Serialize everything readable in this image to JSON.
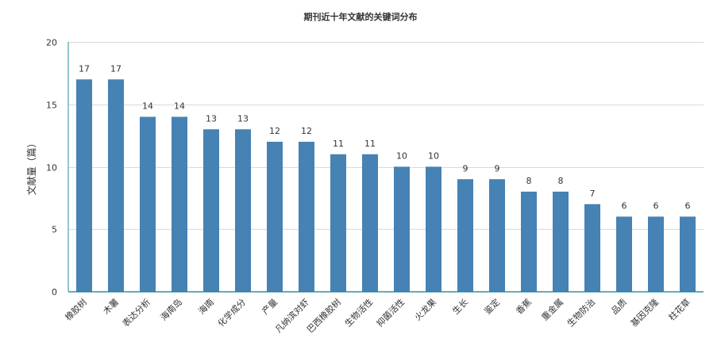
{
  "chart_data": {
    "type": "bar",
    "title": "期刊近十年文献的关键词分布",
    "xlabel": "",
    "ylabel": "文献量（篇）",
    "ylim": [
      0,
      20
    ],
    "yticks": [
      0,
      5,
      10,
      15,
      20
    ],
    "grid": true,
    "legend": "none",
    "categories": [
      "橡胶树",
      "木薯",
      "表达分析",
      "海南岛",
      "海南",
      "化学成分",
      "产量",
      "凡纳滨对虾",
      "巴西橡胶树",
      "生物活性",
      "抑菌活性",
      "火龙果",
      "生长",
      "鉴定",
      "香蕉",
      "重金属",
      "生物防治",
      "品质",
      "基因克隆",
      "柱花草"
    ],
    "values": [
      17,
      17,
      14,
      14,
      13,
      13,
      12,
      12,
      11,
      11,
      10,
      10,
      9,
      9,
      8,
      8,
      7,
      6,
      6,
      6
    ],
    "bar_color": "#4682b4",
    "axis_color": "#2b8c9c",
    "grid_color": "#d9d9d9"
  }
}
